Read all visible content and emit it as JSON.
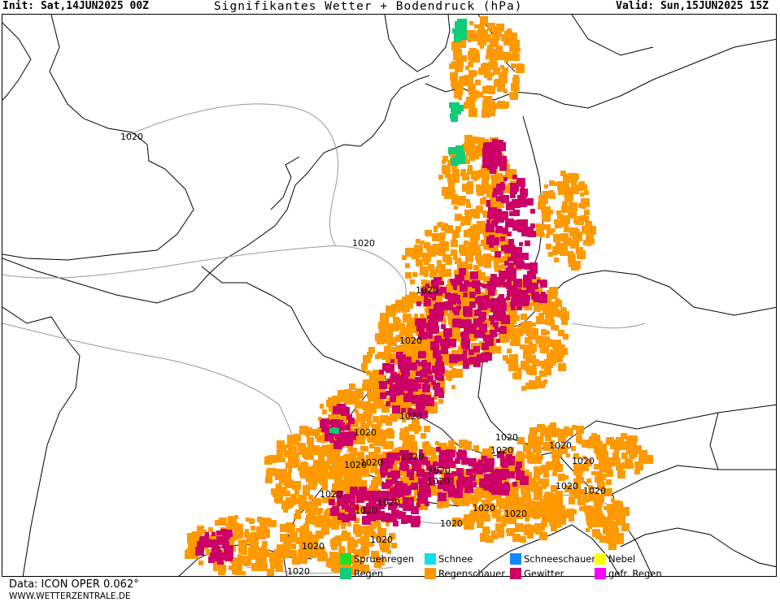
{
  "header": {
    "init": "Init: Sat,14JUN2025 00Z",
    "title": "Signifikantes Wetter + Bodendruck (hPa)",
    "valid": "Valid: Sun,15JUN2025 15Z"
  },
  "isobar_label": "1020",
  "legend": [
    {
      "label": "Spruehregen",
      "color": "#22dd22"
    },
    {
      "label": "Regen",
      "color": "#11cc77"
    },
    {
      "label": "Schnee",
      "color": "#11ddee"
    },
    {
      "label": "Regenschauer",
      "color": "#ff9900"
    },
    {
      "label": "Schneeschauer",
      "color": "#1188ff"
    },
    {
      "label": "Gewitter",
      "color": "#cc0066"
    },
    {
      "label": "Nebel",
      "color": "#ffff00"
    },
    {
      "label": "gefr. Regen",
      "color": "#ff00ff"
    }
  ],
  "footer": {
    "data_source": "Data: ICON OPER 0.062°",
    "website": "WWW.WETTERZENTRALE.DE"
  }
}
